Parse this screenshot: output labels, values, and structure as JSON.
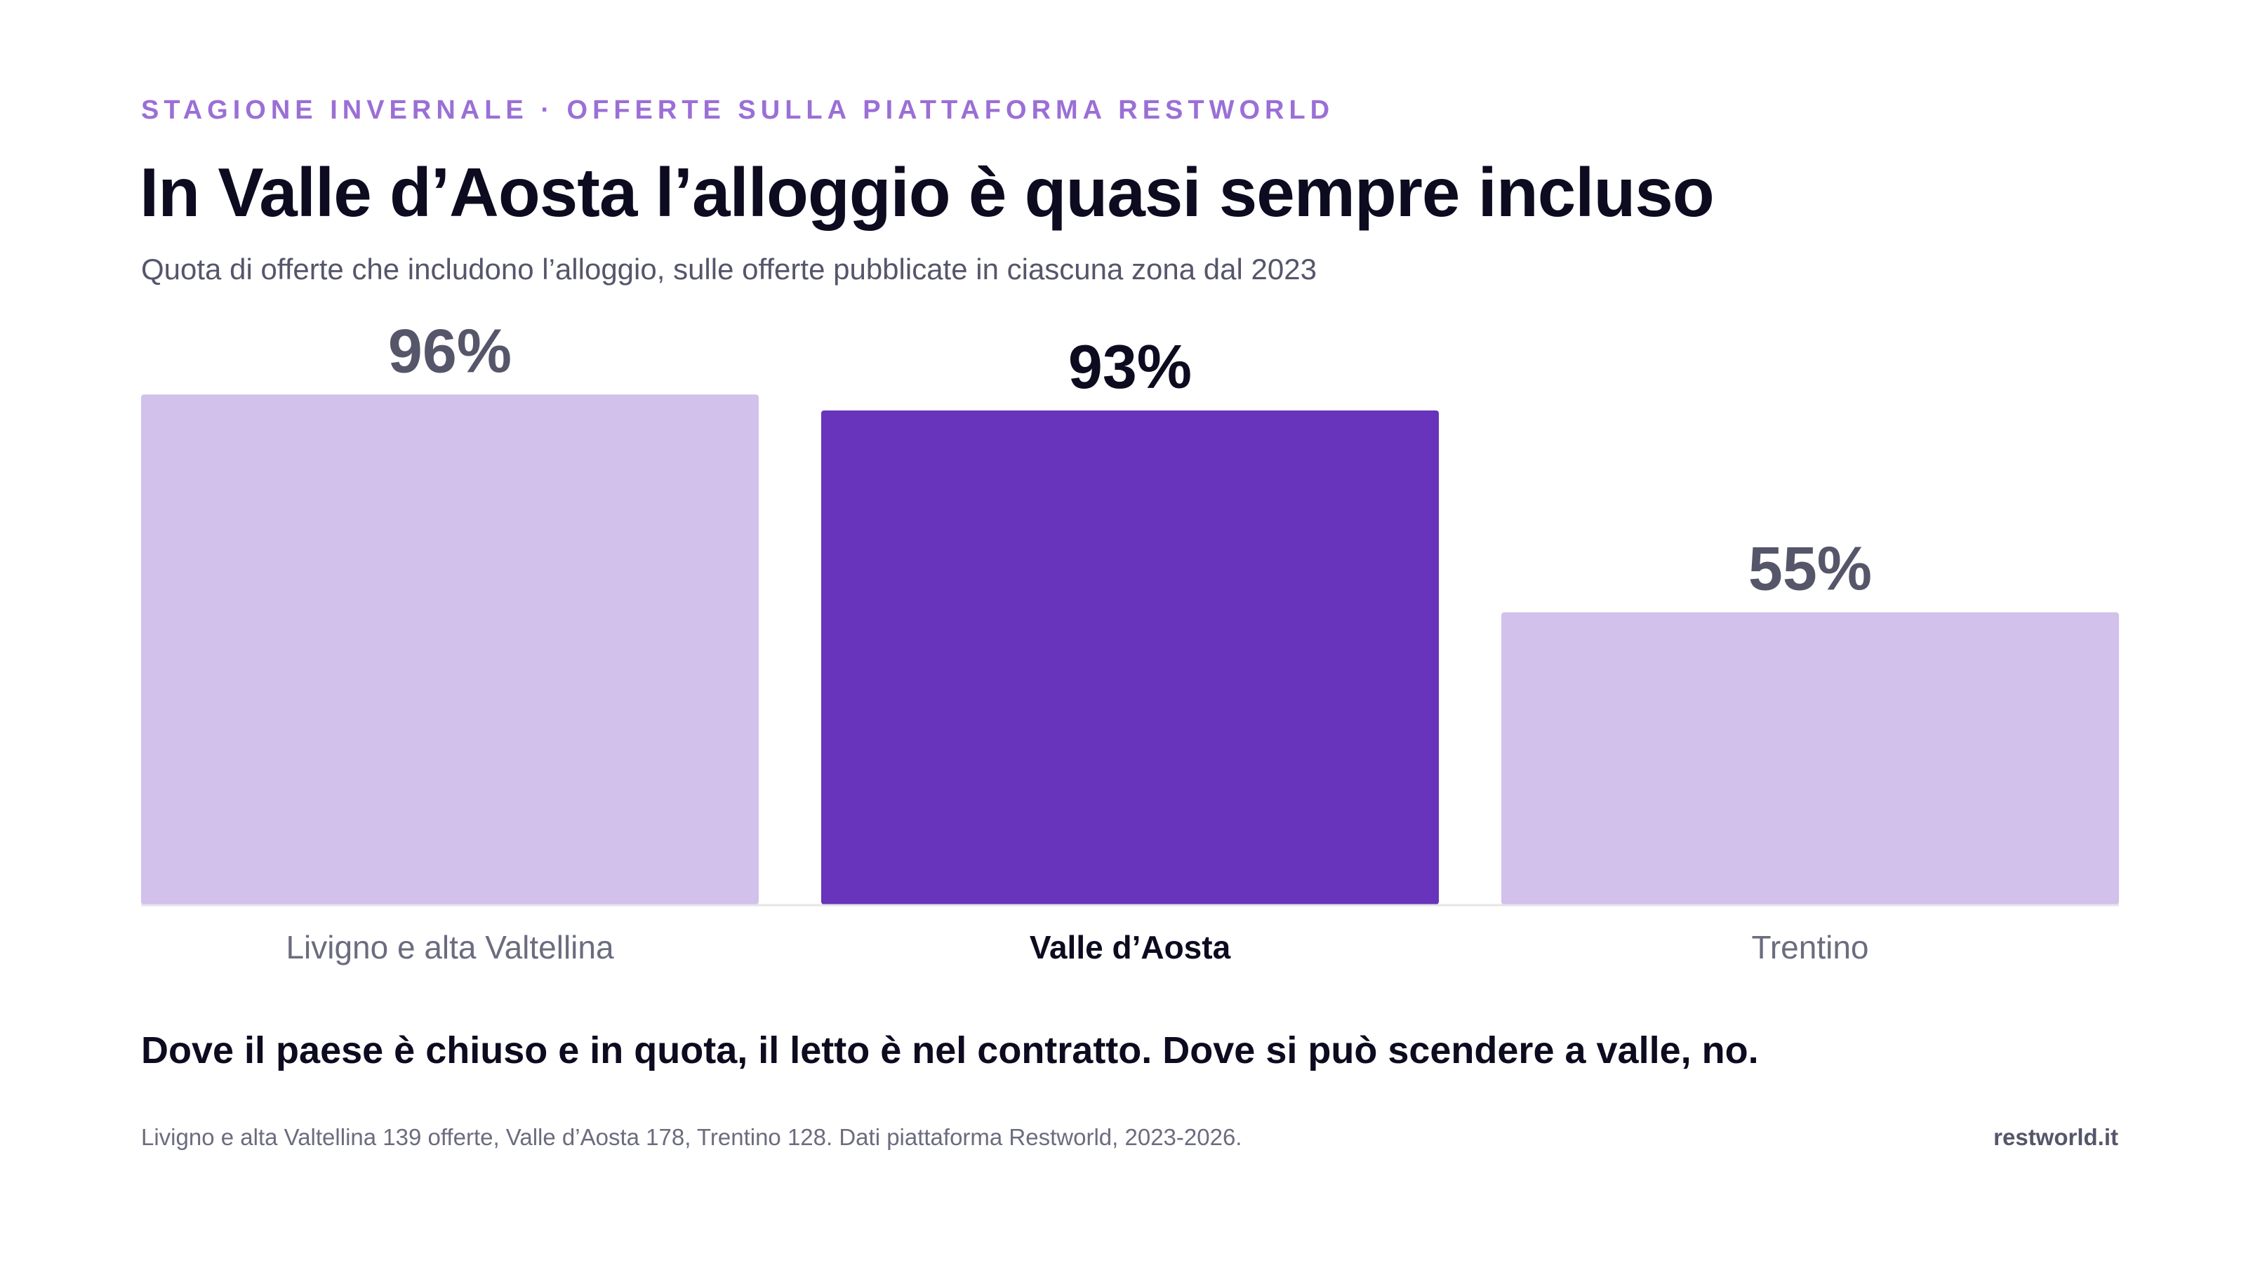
{
  "header": {
    "eyebrow": "STAGIONE INVERNALE · OFFERTE SULLA PIATTAFORMA RESTWORLD",
    "title": "In Valle d’Aosta l’alloggio è quasi sempre incluso",
    "subtitle": "Quota di offerte che includono l’alloggio, sulle offerte pubblicate in ciascuna zona dal 2023"
  },
  "chart_data": {
    "type": "bar",
    "categories": [
      "Livigno e alta Valtellina",
      "Valle d’Aosta",
      "Trentino"
    ],
    "values": [
      96,
      93,
      55
    ],
    "value_labels": [
      "96%",
      "93%",
      "55%"
    ],
    "highlight_index": 1,
    "ylim": [
      0,
      100
    ],
    "grid": false,
    "colors": {
      "base": "#d2c1eb",
      "highlight": "#6734bb",
      "label": "#55566a",
      "label_highlight": "#0d0b1f"
    }
  },
  "takeaway": "Dove il paese è chiuso e in quota, il letto è nel contratto. Dove si può scendere a valle, no.",
  "footer": {
    "note": "Livigno e alta Valtellina 139 offerte, Valle d’Aosta 178, Trentino 128. Dati piattaforma Restworld, 2023-2026.",
    "brand": "restworld.it"
  }
}
